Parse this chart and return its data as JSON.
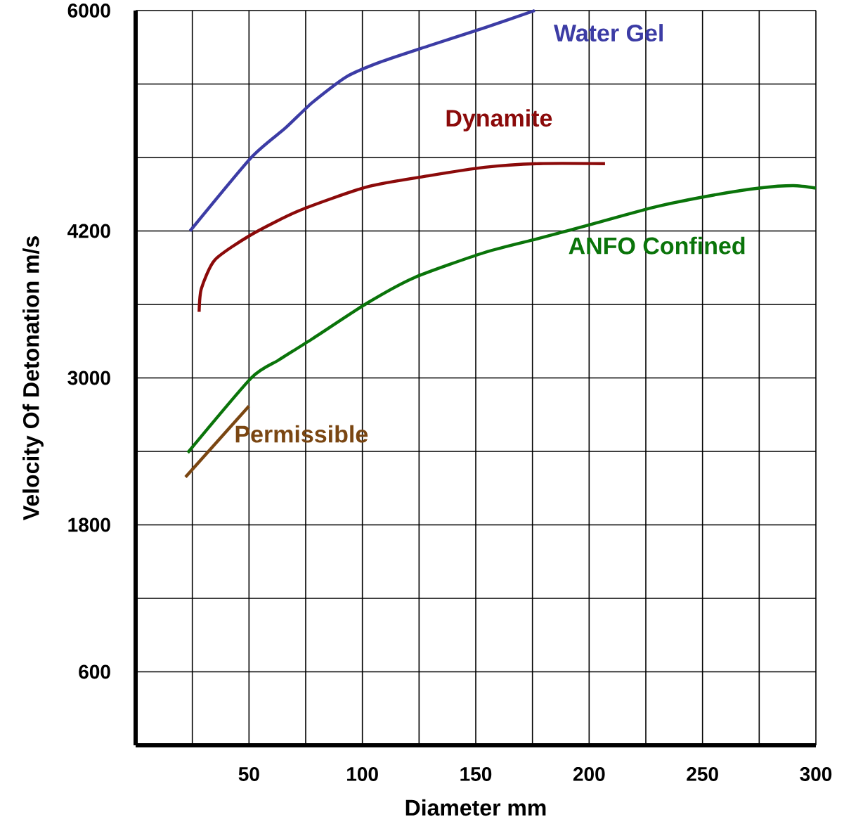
{
  "chart_data": {
    "type": "line",
    "xlabel": "Diameter mm",
    "ylabel": "Velocity Of Detonation m/s",
    "xlim": [
      0,
      300
    ],
    "ylim": [
      0,
      6000
    ],
    "xticks": [
      {
        "value": 25,
        "label": null
      },
      50,
      {
        "value": 75,
        "label": null
      },
      100,
      {
        "value": 125,
        "label": null
      },
      150,
      {
        "value": 175,
        "label": null
      },
      200,
      {
        "value": 225,
        "label": null
      },
      250,
      {
        "value": 275,
        "label": null
      },
      300
    ],
    "yticks": [
      600,
      {
        "value": 1200,
        "label": null
      },
      1800,
      {
        "value": 2400,
        "label": null
      },
      3000,
      {
        "value": 3600,
        "label": null
      },
      4200,
      {
        "value": 4800,
        "label": null
      },
      {
        "value": 5400,
        "label": null
      },
      6000
    ],
    "grid": true,
    "legend": false,
    "series": [
      {
        "name": "Water Gel",
        "color": "#3c3ca5",
        "x": [
          24,
          51,
          66,
          78,
          93,
          108,
          129,
          154,
          176
        ],
        "values": [
          4200,
          4800,
          5040,
          5250,
          5460,
          5580,
          5710,
          5860,
          6000
        ]
      },
      {
        "name": "Dynamite",
        "color": "#8b0a0a",
        "x": [
          28,
          29,
          35,
          51,
          72,
          102,
          129,
          154,
          178,
          207
        ],
        "values": [
          3540,
          3730,
          3965,
          4170,
          4365,
          4560,
          4650,
          4720,
          4750,
          4750
        ]
      },
      {
        "name": "ANFO Confined",
        "color": "#0a740a",
        "x": [
          23,
          51,
          63,
          78,
          102,
          123,
          154,
          178,
          202,
          230,
          254,
          275,
          290,
          300
        ],
        "values": [
          2390,
          3000,
          3145,
          3320,
          3610,
          3820,
          4025,
          4140,
          4260,
          4400,
          4490,
          4550,
          4570,
          4550
        ]
      },
      {
        "name": "Permissible",
        "color": "#7a4612",
        "x": [
          22,
          50
        ],
        "values": [
          2190,
          2770
        ]
      }
    ]
  }
}
